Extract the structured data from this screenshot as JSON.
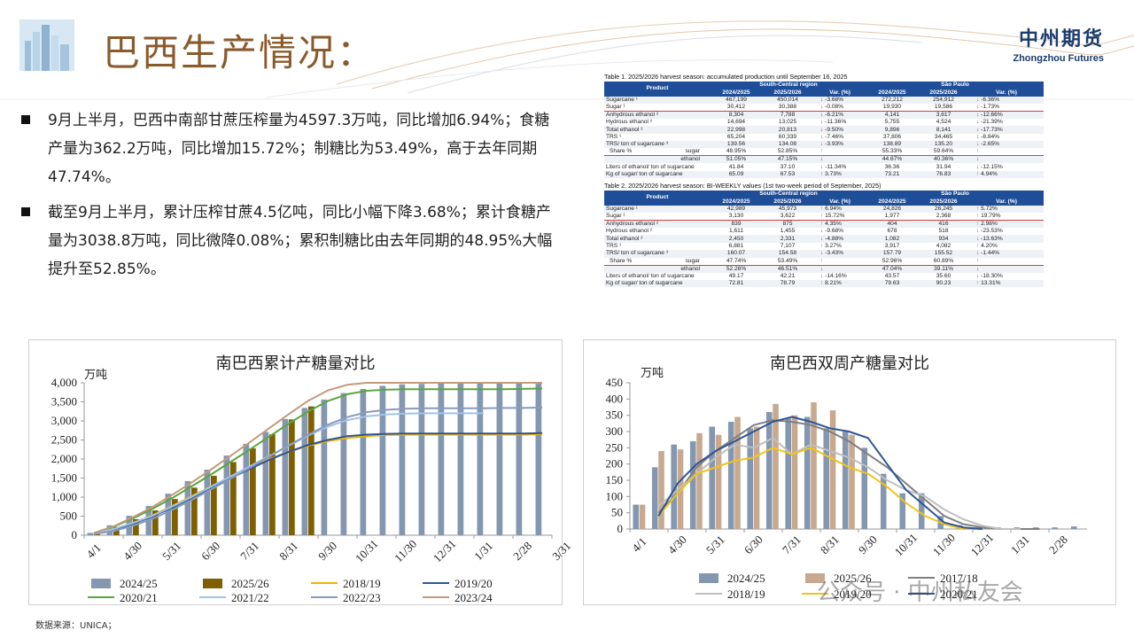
{
  "header": {
    "title": "巴西生产情况：",
    "brand_cn": "中州期货",
    "brand_en": "Zhongzhou Futures"
  },
  "bullets": [
    "9月上半月，巴西中南部甘蔗压榨量为4597.3万吨，同比增加6.94%；食糖产量为362.2万吨，同比增加15.72%；制糖比为53.49%，高于去年同期47.74%。",
    "截至9月上半月，累计压榨甘蔗4.5亿吨，同比小幅下降3.68%；累计食糖产量为3038.8万吨，同比微降0.08%；累积制糖比由去年同期的48.95%大幅提升至52.85%。"
  ],
  "table1": {
    "caption": "Table 1. 2025/2026 harvest season: accumulated production until September 16, 2025",
    "head": {
      "product": "Product",
      "region1": "South-Central region",
      "region2": "São Paulo",
      "cols": [
        "2024/2025",
        "2025/2026",
        "Var. (%)",
        "2024/2025",
        "2025/2026",
        "Var. (%)"
      ]
    },
    "rows": [
      {
        "label": "Sugarcane ¹",
        "v": [
          "467,199",
          "450,014",
          "-3.68%",
          "272,212",
          "254,912",
          "-6.36%"
        ],
        "d": [
          "down",
          "down"
        ]
      },
      {
        "label": "Sugar ¹",
        "v": [
          "30,412",
          "30,388",
          "-0.08%",
          "19,930",
          "19,586",
          "-1.73%"
        ],
        "d": [
          "down",
          "down"
        ]
      },
      {
        "label": "Anhydrous ethanol ²",
        "v": [
          "8,304",
          "7,788",
          "-6.21%",
          "4,141",
          "3,617",
          "-12.66%"
        ],
        "d": [
          "down",
          "down"
        ]
      },
      {
        "label": "Hydrous ethanol ²",
        "v": [
          "14,694",
          "13,025",
          "-11.36%",
          "5,755",
          "4,524",
          "-21.39%"
        ],
        "d": [
          "down",
          "down"
        ]
      },
      {
        "label": "Total ethanol ²",
        "v": [
          "22,998",
          "20,813",
          "-9.50%",
          "9,896",
          "8,141",
          "-17.73%"
        ],
        "d": [
          "down",
          "down"
        ]
      },
      {
        "label": "TRS ¹",
        "v": [
          "65,204",
          "60,339",
          "-7.46%",
          "37,806",
          "34,465",
          "-8.84%"
        ],
        "d": [
          "down",
          "down"
        ]
      },
      {
        "label": "TRS/ ton of sugarcane ³",
        "v": [
          "139.56",
          "134.08",
          "-3.93%",
          "138.89",
          "135.20",
          "-2.65%"
        ],
        "d": [
          "down",
          "down"
        ]
      },
      {
        "label": "Share %",
        "sub": "sugar",
        "v": [
          "48.95%",
          "52.85%",
          "",
          "55.33%",
          "59.64%",
          ""
        ],
        "d": [
          "up",
          "up"
        ]
      },
      {
        "label": "",
        "sub": "ethanol",
        "v": [
          "51.05%",
          "47.15%",
          "",
          "44.67%",
          "40.36%",
          ""
        ],
        "d": [
          "down",
          "down"
        ]
      },
      {
        "label": "Liters of ethanol/ ton of sugarcane",
        "v": [
          "41.84",
          "37.10",
          "-11.34%",
          "36.36",
          "31.94",
          "-12.15%"
        ],
        "d": [
          "down",
          "down"
        ]
      },
      {
        "label": "Kg of sugar/ ton of sugarcane",
        "v": [
          "65.09",
          "67.53",
          "3.73%",
          "73.21",
          "76.83",
          "4.94%"
        ],
        "d": [
          "up",
          "up"
        ]
      }
    ]
  },
  "table2": {
    "caption": "Table 2. 2025/2026 harvest season: BI-WEEKLY values (1st two-week period of September, 2025)",
    "head": {
      "product": "Product",
      "region1": "South-Central region",
      "region2": "São Paulo",
      "cols": [
        "2024/2025",
        "2025/2026",
        "Var. (%)",
        "2024/2025",
        "2025/2026",
        "Var. (%)"
      ]
    },
    "rows": [
      {
        "label": "Sugarcane ¹",
        "v": [
          "42,989",
          "45,973",
          "6.94%",
          "24,826",
          "26,245",
          "5.72%"
        ],
        "d": [
          "up",
          "up"
        ]
      },
      {
        "label": "Sugar ¹",
        "v": [
          "3,130",
          "3,622",
          "15.72%",
          "1,977",
          "2,368",
          "19.79%"
        ],
        "d": [
          "up",
          "up"
        ]
      },
      {
        "label": "Anhydrous ethanol ²",
        "v": [
          "839",
          "875",
          "4.35%",
          "404",
          "416",
          "2.98%"
        ],
        "d": [
          "up",
          "up"
        ]
      },
      {
        "label": "Hydrous ethanol ²",
        "v": [
          "1,611",
          "1,455",
          "-9.68%",
          "678",
          "518",
          "-23.53%"
        ],
        "d": [
          "down",
          "down"
        ]
      },
      {
        "label": "Total ethanol ²",
        "v": [
          "2,450",
          "2,331",
          "-4.88%",
          "1,082",
          "934",
          "-13.63%"
        ],
        "d": [
          "down",
          "down"
        ]
      },
      {
        "label": "TRS ¹",
        "v": [
          "6,881",
          "7,107",
          "3.27%",
          "3,917",
          "4,082",
          "4.20%"
        ],
        "d": [
          "up",
          "up"
        ]
      },
      {
        "label": "TRS/ ton of sugarcane ³",
        "v": [
          "160.07",
          "154.58",
          "-3.43%",
          "157.79",
          "155.52",
          "-1.44%"
        ],
        "d": [
          "down",
          "down"
        ]
      },
      {
        "label": "Share %",
        "sub": "sugar",
        "v": [
          "47.74%",
          "53.49%",
          "",
          "52.96%",
          "60.89%",
          ""
        ],
        "d": [
          "up",
          "up"
        ]
      },
      {
        "label": "",
        "sub": "ethanol",
        "v": [
          "52.26%",
          "46.51%",
          "",
          "47.04%",
          "39.11%",
          ""
        ],
        "d": [
          "down",
          "down"
        ]
      },
      {
        "label": "Liters of ethanol/ ton of sugarcane",
        "v": [
          "49.17",
          "42.21",
          "-14.16%",
          "43.57",
          "35.60",
          "-18.30%"
        ],
        "d": [
          "down",
          "down"
        ]
      },
      {
        "label": "Kg of sugar/ ton of sugarcane",
        "v": [
          "72.81",
          "78.79",
          "8.21%",
          "79.63",
          "90.23",
          "13.31%"
        ],
        "d": [
          "up",
          "up"
        ]
      }
    ]
  },
  "chart_data": [
    {
      "type": "bar",
      "title": "南巴西累计产糖量对比",
      "ylabel": "万吨",
      "ylim": [
        0,
        4000
      ],
      "yticks": [
        0,
        500,
        1000,
        1500,
        2000,
        2500,
        3000,
        3500,
        4000
      ],
      "ytick_labels": [
        "0",
        "500",
        "1,000",
        "1,500",
        "2,000",
        "2,500",
        "3,000",
        "3,500",
        "4,000"
      ],
      "x_points": 24,
      "x_tick_labels": [
        "4/1",
        "4/30",
        "5/31",
        "6/30",
        "7/31",
        "8/31",
        "9/30",
        "10/31",
        "11/30",
        "12/31",
        "1/31",
        "2/28",
        "3/31"
      ],
      "grid": false,
      "legend_position": "bottom",
      "series": [
        {
          "name": "2024/25",
          "kind": "bar",
          "color": "#8497b0",
          "values": [
            60,
            260,
            510,
            770,
            1090,
            1420,
            1720,
            2090,
            2400,
            2710,
            3050,
            3340,
            3560,
            3730,
            3840,
            3920,
            3960,
            3970,
            3980,
            3985,
            3990,
            3995,
            4000,
            4000
          ]
        },
        {
          "name": "2025/26",
          "kind": "bar",
          "color": "#7f6000",
          "values": [
            70,
            220,
            420,
            650,
            950,
            1250,
            1560,
            1920,
            2280,
            2650,
            3040,
            3380,
            null,
            null,
            null,
            null,
            null,
            null,
            null,
            null,
            null,
            null,
            null,
            null
          ]
        },
        {
          "name": "2018/19",
          "kind": "line",
          "color": "#f0b400",
          "values": [
            50,
            150,
            320,
            520,
            760,
            1020,
            1280,
            1530,
            1770,
            2000,
            2190,
            2350,
            2470,
            2550,
            2600,
            2630,
            2640,
            2640,
            2640,
            2640,
            2640,
            2640,
            2640,
            2650
          ]
        },
        {
          "name": "2019/20",
          "kind": "line",
          "color": "#2e5597",
          "values": [
            40,
            140,
            300,
            490,
            720,
            970,
            1230,
            1490,
            1740,
            1980,
            2190,
            2370,
            2500,
            2600,
            2640,
            2660,
            2670,
            2670,
            2670,
            2670,
            2670,
            2670,
            2670,
            2680
          ]
        },
        {
          "name": "2020/21",
          "kind": "line",
          "color": "#5ca53c",
          "values": [
            60,
            220,
            440,
            690,
            970,
            1280,
            1590,
            1920,
            2250,
            2590,
            2930,
            3250,
            3520,
            3700,
            3790,
            3820,
            3830,
            3830,
            3830,
            3830,
            3830,
            3830,
            3840,
            3850
          ]
        },
        {
          "name": "2021/22",
          "kind": "line",
          "color": "#9fc3e7",
          "values": [
            40,
            160,
            320,
            510,
            750,
            1000,
            1270,
            1540,
            1810,
            2080,
            2350,
            2620,
            2850,
            3020,
            3120,
            3170,
            3190,
            3200,
            3200,
            3200,
            3200,
            null,
            null,
            null
          ]
        },
        {
          "name": "2022/23",
          "kind": "line",
          "color": "#8a9bbc",
          "values": [
            30,
            110,
            250,
            430,
            660,
            920,
            1200,
            1480,
            1770,
            2060,
            2360,
            2640,
            2900,
            3100,
            3230,
            3290,
            3320,
            3330,
            3330,
            3330,
            3330,
            3340,
            3340,
            3350
          ]
        },
        {
          "name": "2023/24",
          "kind": "line",
          "color": "#c49a7a",
          "values": [
            60,
            230,
            470,
            740,
            1050,
            1380,
            1720,
            2080,
            2440,
            2810,
            3180,
            3530,
            3800,
            3950,
            4030,
            4060,
            4070,
            4080,
            4080,
            4080,
            4080,
            4080,
            4080,
            4080
          ]
        }
      ]
    },
    {
      "type": "bar",
      "title": "南巴西双周产糖量对比",
      "ylabel": "万吨",
      "ylim": [
        0,
        450
      ],
      "yticks": [
        0,
        50,
        100,
        150,
        200,
        250,
        300,
        350,
        400,
        450
      ],
      "ytick_labels": [
        "0",
        "50",
        "100",
        "150",
        "200",
        "250",
        "300",
        "350",
        "400",
        "450"
      ],
      "x_points": 24,
      "x_tick_labels": [
        "4/1",
        "4/30",
        "5/31",
        "6/30",
        "7/31",
        "8/31",
        "9/30",
        "10/31",
        "11/30",
        "12/31",
        "1/31",
        "2/28"
      ],
      "grid": false,
      "legend_position": "bottom",
      "series": [
        {
          "name": "2024/25",
          "kind": "bar",
          "color": "#8497b0",
          "values": [
            75,
            190,
            260,
            270,
            315,
            330,
            310,
            360,
            340,
            345,
            310,
            300,
            250,
            170,
            110,
            110,
            40,
            12,
            5,
            5,
            5,
            5,
            5,
            8
          ]
        },
        {
          "name": "2025/26",
          "kind": "bar",
          "color": "#c8a990",
          "values": [
            75,
            240,
            245,
            295,
            290,
            345,
            315,
            385,
            350,
            390,
            365,
            290,
            null,
            null,
            null,
            null,
            null,
            null,
            null,
            null,
            null,
            null,
            null,
            null
          ]
        },
        {
          "name": "2017/18",
          "kind": "line",
          "color": "#7f7f7f",
          "values": [
            null,
            50,
            110,
            190,
            240,
            280,
            320,
            335,
            330,
            320,
            300,
            270,
            230,
            190,
            140,
            90,
            40,
            15,
            5,
            0,
            0,
            0,
            null,
            null
          ]
        },
        {
          "name": "2018/19",
          "kind": "line",
          "color": "#bfbfbf",
          "values": [
            null,
            70,
            120,
            170,
            220,
            260,
            250,
            280,
            230,
            260,
            240,
            220,
            190,
            150,
            120,
            100,
            60,
            30,
            10,
            0,
            0,
            null,
            null,
            null
          ]
        },
        {
          "name": "2019/20",
          "kind": "line",
          "color": "#f0c419",
          "values": [
            null,
            40,
            110,
            170,
            190,
            210,
            220,
            250,
            230,
            250,
            220,
            190,
            170,
            130,
            80,
            40,
            15,
            0,
            0,
            null,
            null,
            null,
            null,
            null
          ]
        },
        {
          "name": "2020/21",
          "kind": "line",
          "color": "#2e5597",
          "values": [
            null,
            40,
            140,
            200,
            240,
            270,
            300,
            330,
            345,
            330,
            310,
            300,
            280,
            200,
            120,
            70,
            20,
            5,
            0,
            null,
            null,
            null,
            null,
            null
          ]
        }
      ]
    }
  ],
  "chart_extra_legend": {
    "left": [],
    "right": []
  },
  "source": "数据来源：UNICA；",
  "watermark": "公众号 · 中州私友会"
}
